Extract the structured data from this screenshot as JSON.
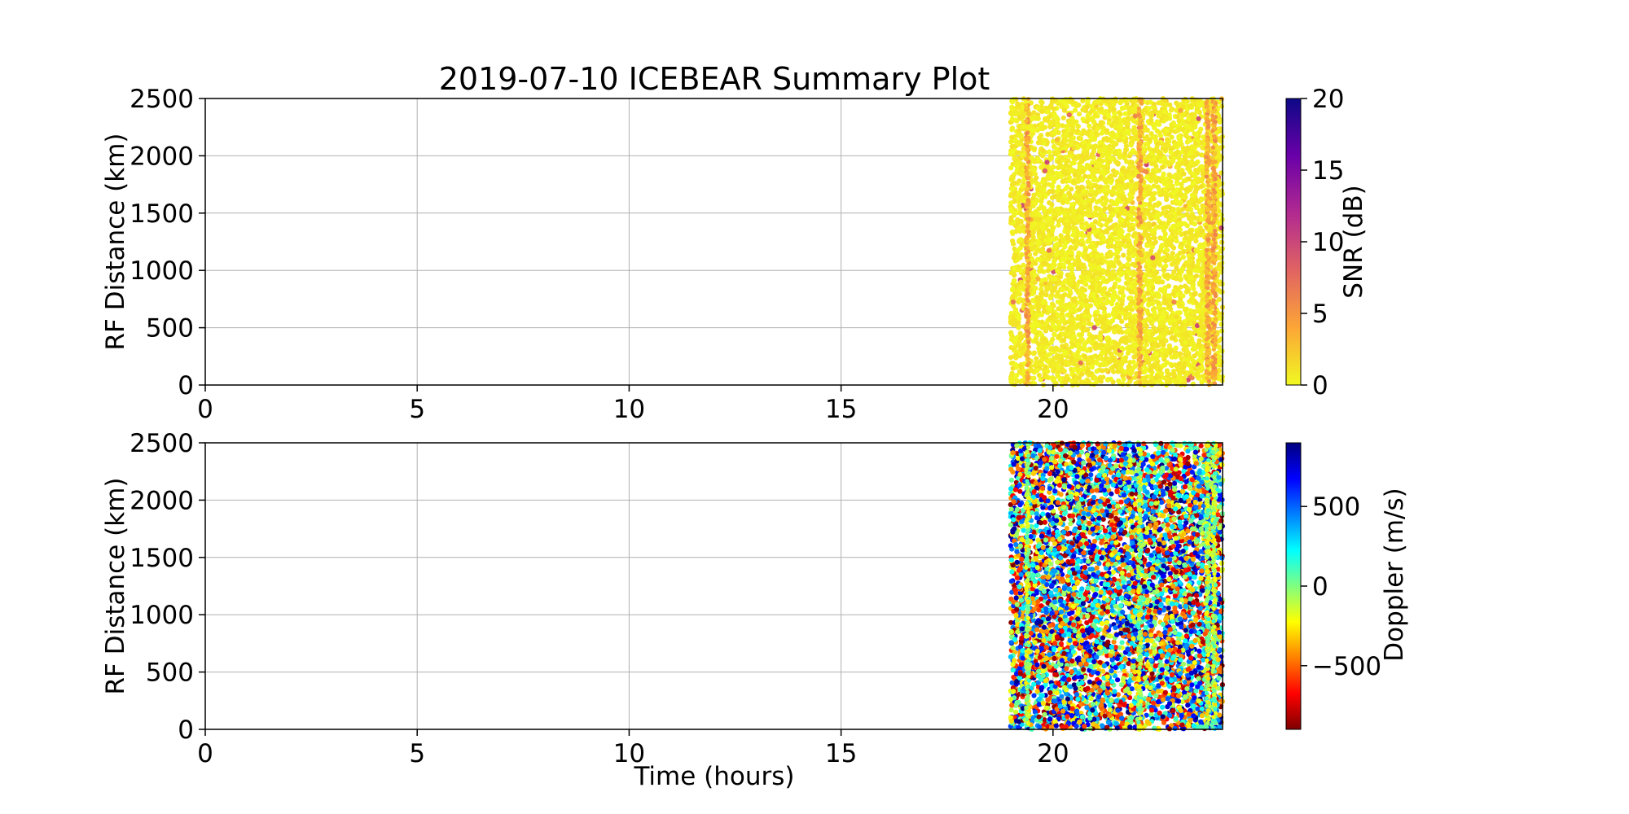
{
  "title": "2019-07-10 ICEBEAR Summary Plot",
  "chart_data": [
    {
      "type": "scatter",
      "panel": "top",
      "title": "2019-07-10 ICEBEAR Summary Plot",
      "xlabel": "",
      "ylabel": "RF Distance (km)",
      "xlim": [
        0,
        24
      ],
      "ylim": [
        0,
        2500
      ],
      "xticks": [
        0,
        5,
        10,
        15,
        20
      ],
      "yticks": [
        0,
        500,
        1000,
        1500,
        2000,
        2500
      ],
      "grid": true,
      "data_time_range": [
        19.0,
        24.0
      ],
      "data_range_extent": [
        0,
        2500
      ],
      "dominant_snr_db": 0,
      "snr_streak_times": [
        19.4,
        22.05,
        23.65,
        23.8
      ],
      "colorbar": {
        "label": "SNR (dB)",
        "min": 0,
        "max": 20,
        "ticks": [
          0,
          5,
          10,
          15,
          20
        ],
        "colormap": "plasma_r",
        "colors": [
          "#f0f921",
          "#fca636",
          "#e16462",
          "#b12a90",
          "#6a00a8",
          "#0d0887"
        ]
      }
    },
    {
      "type": "scatter",
      "panel": "bottom",
      "xlabel": "Time (hours)",
      "ylabel": "RF Distance (km)",
      "xlim": [
        0,
        24
      ],
      "ylim": [
        0,
        2500
      ],
      "xticks": [
        0,
        5,
        10,
        15,
        20
      ],
      "yticks": [
        0,
        500,
        1000,
        1500,
        2000,
        2500
      ],
      "grid": true,
      "data_time_range": [
        19.0,
        24.0
      ],
      "data_range_extent": [
        0,
        2500
      ],
      "doppler_streak_times": [
        19.4,
        22.05,
        23.65,
        23.8
      ],
      "colorbar": {
        "label": "Doppler (m/s)",
        "min": -900,
        "max": 900,
        "ticks": [
          -500,
          0,
          500
        ],
        "tick_labels": [
          "−500",
          "0",
          "500"
        ],
        "colormap": "jet_r",
        "colors": [
          "#7f0000",
          "#ff0000",
          "#ff8000",
          "#ffff00",
          "#80ff80",
          "#00ffff",
          "#0080ff",
          "#0000ff",
          "#00007f"
        ]
      }
    }
  ]
}
